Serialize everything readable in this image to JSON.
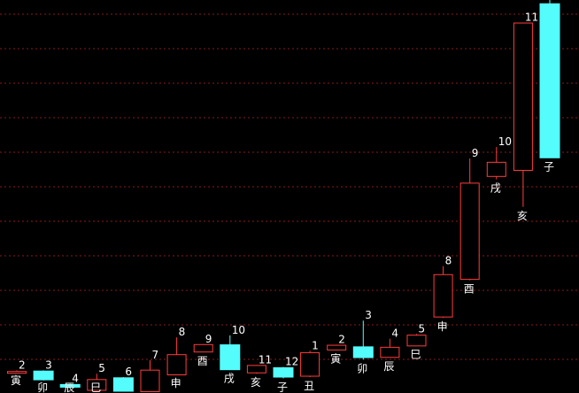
{
  "chart_data": {
    "type": "candlestick",
    "title": "",
    "grid": true,
    "y_scale": "linear",
    "colors": {
      "background": "#000000",
      "up": "#ff3c3c",
      "down": "#54fcfc",
      "grid": "#8a1a1a",
      "label": "#ffffff"
    },
    "candles": [
      {
        "index": 0,
        "top_label": "2",
        "bottom_label": "寅",
        "open": 3.0,
        "close": 3.0,
        "high": 3.1,
        "low": 2.9
      },
      {
        "index": 1,
        "top_label": "3",
        "bottom_label": "卯",
        "open": 3.0,
        "close": 1.7,
        "high": 3.1,
        "low": 1.6
      },
      {
        "index": 2,
        "top_label": "4",
        "bottom_label": "辰",
        "open": 1.0,
        "close": 0.6,
        "high": 1.1,
        "low": 0.5
      },
      {
        "index": 3,
        "top_label": "5",
        "bottom_label": "巳",
        "open": 0.2,
        "close": 1.8,
        "high": 2.6,
        "low": 0.1
      },
      {
        "index": 4,
        "top_label": "6",
        "bottom_label": "",
        "open": 2.0,
        "close": 0.0,
        "high": 2.1,
        "low": 0.0
      },
      {
        "index": 5,
        "top_label": "7",
        "bottom_label": "",
        "open": 0.0,
        "close": 3.2,
        "high": 4.6,
        "low": 0.0
      },
      {
        "index": 6,
        "top_label": "8",
        "bottom_label": "申",
        "open": 2.5,
        "close": 5.5,
        "high": 8.0,
        "low": 2.5
      },
      {
        "index": 7,
        "top_label": "9",
        "bottom_label": "酉",
        "open": 5.9,
        "close": 7.0,
        "high": 7.0,
        "low": 5.8
      },
      {
        "index": 8,
        "top_label": "10",
        "bottom_label": "戌",
        "open": 6.9,
        "close": 3.2,
        "high": 8.3,
        "low": 3.2
      },
      {
        "index": 9,
        "top_label": "11",
        "bottom_label": "亥",
        "open": 2.8,
        "close": 3.9,
        "high": 3.9,
        "low": 2.6
      },
      {
        "index": 10,
        "top_label": "12",
        "bottom_label": "子",
        "open": 3.5,
        "close": 2.1,
        "high": 3.6,
        "low": 1.9
      },
      {
        "index": 11,
        "top_label": "1",
        "bottom_label": "丑",
        "open": 2.3,
        "close": 5.8,
        "high": 6.0,
        "low": 2.1
      },
      {
        "index": 12,
        "top_label": "2",
        "bottom_label": "寅",
        "open": 6.2,
        "close": 6.9,
        "high": 6.9,
        "low": 6.1
      },
      {
        "index": 13,
        "top_label": "3",
        "bottom_label": "卯",
        "open": 6.6,
        "close": 5.0,
        "high": 10.5,
        "low": 4.7
      },
      {
        "index": 14,
        "top_label": "4",
        "bottom_label": "辰",
        "open": 5.1,
        "close": 6.6,
        "high": 7.8,
        "low": 5.0
      },
      {
        "index": 15,
        "top_label": "5",
        "bottom_label": "巳",
        "open": 6.8,
        "close": 8.4,
        "high": 8.5,
        "low": 6.8
      },
      {
        "index": 16,
        "top_label": "8",
        "bottom_label": "申",
        "open": 11.1,
        "close": 17.4,
        "high": 18.6,
        "low": 10.9
      },
      {
        "index": 17,
        "top_label": "9",
        "bottom_label": "酉",
        "open": 16.7,
        "close": 31.0,
        "high": 34.6,
        "low": 16.5
      },
      {
        "index": 18,
        "top_label": "10",
        "bottom_label": "戌",
        "open": 32.0,
        "close": 34.1,
        "high": 36.3,
        "low": 31.5
      },
      {
        "index": 19,
        "top_label": "11",
        "bottom_label": "亥",
        "open": 32.9,
        "close": 54.8,
        "high": 54.8,
        "low": 27.4
      },
      {
        "index": 20,
        "top_label": "",
        "bottom_label": "子",
        "open": 57.6,
        "close": 34.7,
        "high": 62.0,
        "low": 34.7
      }
    ]
  }
}
